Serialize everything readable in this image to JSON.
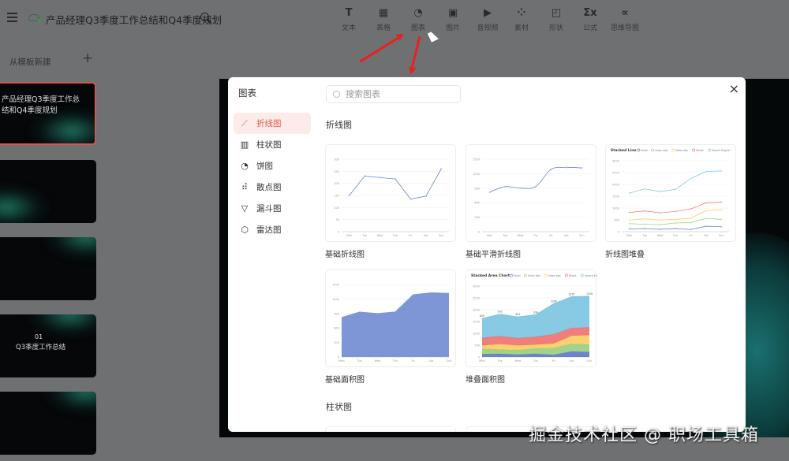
{
  "header": {
    "doc_title": "产品经理Q3季度工作总结和Q4季度规划",
    "cloud_status": "saved",
    "icons": [
      "menu-icon",
      "cloud-icon",
      "search-icon"
    ]
  },
  "toolbar": [
    {
      "label": "文本",
      "icon": "T"
    },
    {
      "label": "表格",
      "icon": "▦"
    },
    {
      "label": "图表",
      "icon": "◔"
    },
    {
      "label": "图片",
      "icon": "▣"
    },
    {
      "label": "音视频",
      "icon": "▶"
    },
    {
      "label": "素材",
      "icon": "⁘"
    },
    {
      "label": "形状",
      "icon": "◰"
    },
    {
      "label": "公式",
      "icon": "Σx"
    },
    {
      "label": "思维导图",
      "icon": "∝"
    }
  ],
  "sidebar": {
    "new_from_template": "从模板新建",
    "add": "+",
    "slides": [
      {
        "title": "产品经理Q3季度工作总结和Q4季度规划"
      },
      {
        "title": ""
      },
      {
        "title": ""
      },
      {
        "number": "01",
        "title": "Q3季度工作总结"
      },
      {
        "title": ""
      }
    ]
  },
  "dialog": {
    "title": "图表",
    "close": "×",
    "search_placeholder": "搜索图表",
    "nav": [
      {
        "label": "折线图",
        "icon": "line-chart-icon",
        "glyph": "⟋",
        "active": true
      },
      {
        "label": "柱状图",
        "icon": "bar-chart-icon",
        "glyph": "▥"
      },
      {
        "label": "饼图",
        "icon": "pie-chart-icon",
        "glyph": "◔"
      },
      {
        "label": "散点图",
        "icon": "scatter-chart-icon",
        "glyph": "⠾"
      },
      {
        "label": "漏斗图",
        "icon": "funnel-chart-icon",
        "glyph": "▽"
      },
      {
        "label": "雷达图",
        "icon": "radar-chart-icon",
        "glyph": "⬡"
      }
    ],
    "sections": [
      {
        "title": "折线图"
      },
      {
        "title": "柱状图"
      }
    ],
    "accent": "#e55b4d"
  },
  "chart_data": [
    {
      "name": "基础折线图",
      "type": "line",
      "categories": [
        "Mon",
        "Tue",
        "Wed",
        "Thu",
        "Fri",
        "Sat",
        "Sun"
      ],
      "ylim": [
        0,
        300
      ],
      "yticks": [
        0,
        50,
        100,
        150,
        200,
        250,
        300
      ],
      "series": [
        {
          "values": [
            150,
            230,
            224,
            218,
            135,
            147,
            260
          ],
          "color": "#5470c6"
        }
      ]
    },
    {
      "name": "基础平滑折线图",
      "type": "line",
      "smooth": true,
      "categories": [
        "Mon",
        "Tue",
        "Wed",
        "Thu",
        "Fri",
        "Sat",
        "Sun"
      ],
      "ylim": [
        0,
        1500
      ],
      "yticks": [
        0,
        300,
        600,
        900,
        1200,
        1500
      ],
      "series": [
        {
          "values": [
            820,
            932,
            901,
            934,
            1290,
            1330,
            1320
          ],
          "color": "#5470c6"
        }
      ]
    },
    {
      "name": "折线图堆叠",
      "title": "Stacked Line",
      "type": "line",
      "stacked": true,
      "categories": [
        "Mon",
        "Tue",
        "Wed",
        "Thu",
        "Fri",
        "Sat",
        "Sun"
      ],
      "ylim": [
        0,
        3000
      ],
      "yticks": [
        0,
        500,
        1000,
        1500,
        2000,
        2500,
        3000
      ],
      "series": [
        {
          "name": "Email",
          "values": [
            120,
            132,
            101,
            134,
            90,
            230,
            210
          ],
          "color": "#5470c6"
        },
        {
          "name": "Union Ads",
          "values": [
            220,
            182,
            191,
            234,
            290,
            330,
            310
          ],
          "color": "#91cc75"
        },
        {
          "name": "Video Ads",
          "values": [
            150,
            232,
            201,
            154,
            190,
            330,
            410
          ],
          "color": "#fac858"
        },
        {
          "name": "Direct",
          "values": [
            320,
            332,
            301,
            334,
            390,
            330,
            320
          ],
          "color": "#ee6666"
        },
        {
          "name": "Search Engine",
          "values": [
            820,
            932,
            901,
            934,
            1290,
            1330,
            1320
          ],
          "color": "#73c0de"
        }
      ]
    },
    {
      "name": "基础面积图",
      "type": "area",
      "categories": [
        "Mon",
        "Tue",
        "Wed",
        "Thu",
        "Fri",
        "Sat",
        "Sun"
      ],
      "ylim": [
        0,
        1500
      ],
      "yticks": [
        0,
        300,
        600,
        900,
        1200,
        1500
      ],
      "series": [
        {
          "values": [
            820,
            932,
            901,
            934,
            1290,
            1330,
            1320
          ],
          "color": "#7e95d6"
        }
      ]
    },
    {
      "name": "堆叠面积图",
      "title": "Stacked Area Chart",
      "type": "area",
      "stacked": true,
      "show_top_labels": true,
      "categories": [
        "Mon",
        "Tue",
        "Wed",
        "Thu",
        "Fri",
        "Sat",
        "Sun"
      ],
      "ylim": [
        0,
        3000
      ],
      "yticks": [
        0,
        500,
        1000,
        1500,
        2000,
        2500,
        3000
      ],
      "series": [
        {
          "name": "Email",
          "values": [
            120,
            132,
            101,
            134,
            90,
            230,
            210
          ],
          "color": "#5470c6"
        },
        {
          "name": "Union Ads",
          "values": [
            220,
            182,
            191,
            234,
            290,
            330,
            310
          ],
          "color": "#91cc75"
        },
        {
          "name": "Video Ads",
          "values": [
            150,
            232,
            201,
            154,
            190,
            330,
            410
          ],
          "color": "#fac858"
        },
        {
          "name": "Direct",
          "values": [
            320,
            332,
            301,
            334,
            390,
            330,
            320
          ],
          "color": "#ee6666"
        },
        {
          "name": "Search Engine",
          "values": [
            820,
            932,
            901,
            934,
            1290,
            1330,
            1320
          ],
          "color": "#73c0de"
        }
      ]
    }
  ],
  "watermark": "掘金技术社区 @ 职场工具箱"
}
